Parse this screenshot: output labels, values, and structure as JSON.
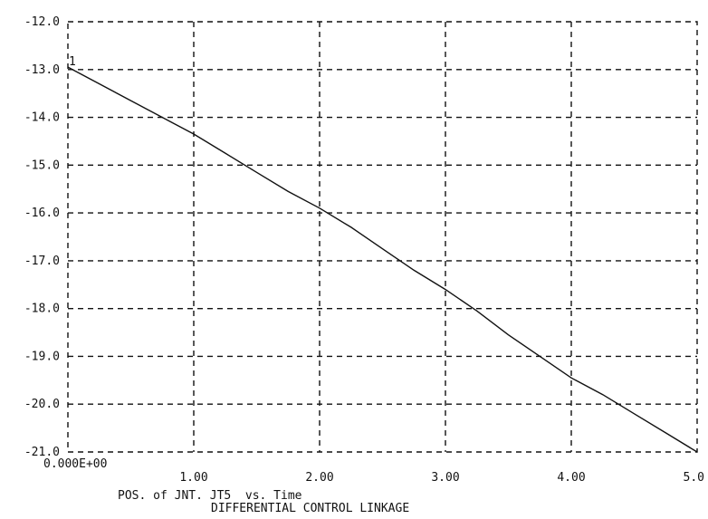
{
  "chart_data": {
    "type": "line",
    "title": "POS. of JNT. JT5  vs. Time",
    "subtitle": "DIFFERENTIAL CONTROL LINKAGE",
    "xlabel": "",
    "ylabel": "",
    "xlim": [
      0,
      5
    ],
    "ylim": [
      -21,
      -12
    ],
    "grid": true,
    "x_ticks": [
      0,
      1,
      2,
      3,
      4,
      5
    ],
    "x_tick_labels": [
      "0.000E+00",
      "1.00",
      "2.00",
      "3.00",
      "4.00",
      "5.0"
    ],
    "y_ticks": [
      -12,
      -13,
      -14,
      -15,
      -16,
      -17,
      -18,
      -19,
      -20,
      -21
    ],
    "y_tick_labels": [
      "-12.0",
      "-13.0",
      "-14.0",
      "-15.0",
      "-16.0",
      "-17.0",
      "-18.0",
      "-19.0",
      "-20.0",
      "-21.0"
    ],
    "marker_label": "1",
    "series": [
      {
        "x": [
          0.0,
          0.25,
          0.5,
          0.75,
          1.0,
          1.25,
          1.5,
          1.75,
          2.0,
          2.25,
          2.5,
          2.75,
          3.0,
          3.25,
          3.5,
          3.75,
          4.0,
          4.25,
          4.5,
          4.75,
          5.0
        ],
        "values": [
          -12.95,
          -13.3,
          -13.65,
          -14.0,
          -14.35,
          -14.75,
          -15.15,
          -15.55,
          -15.9,
          -16.3,
          -16.75,
          -17.2,
          -17.6,
          -18.05,
          -18.55,
          -19.0,
          -19.45,
          -19.8,
          -20.2,
          -20.6,
          -21.0
        ]
      }
    ]
  }
}
